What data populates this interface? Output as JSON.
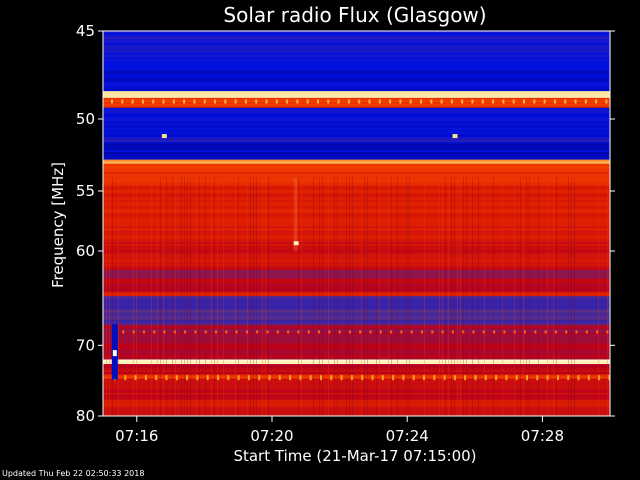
{
  "chart_data": {
    "type": "heatmap",
    "title": "Solar radio Flux (Glasgow)",
    "xlabel": "Start Time (21-Mar-17 07:15:00)",
    "ylabel": "Frequency [MHz]",
    "x_ticks": [
      "07:16",
      "07:20",
      "07:24",
      "07:28"
    ],
    "x_tick_minutes": [
      1,
      5,
      9,
      13
    ],
    "xlim_minutes": [
      0,
      15
    ],
    "y_ticks": [
      45,
      50,
      55,
      60,
      70,
      80
    ],
    "ylim_mhz": [
      45,
      80
    ],
    "y_scale": "reciprocal",
    "colormap": [
      "#000070",
      "#0010e0",
      "#5a2f8a",
      "#b8001c",
      "#e02000",
      "#ff5a00",
      "#ffd070",
      "#ffffe0"
    ],
    "bands": [
      {
        "from": 45,
        "to": 46.8,
        "level": 0.16
      },
      {
        "from": 46.8,
        "to": 48.3,
        "level": 0.12
      },
      {
        "from": 48.3,
        "to": 48.7,
        "level": 0.95
      },
      {
        "from": 48.7,
        "to": 49.3,
        "level": 0.62
      },
      {
        "from": 49.3,
        "to": 51.2,
        "level": 0.14
      },
      {
        "from": 51.2,
        "to": 51.5,
        "level": 0.2
      },
      {
        "from": 51.5,
        "to": 52.7,
        "level": 0.12
      },
      {
        "from": 52.7,
        "to": 53.0,
        "level": 0.8
      },
      {
        "from": 53.0,
        "to": 54.5,
        "level": 0.62
      },
      {
        "from": 54.5,
        "to": 59.0,
        "level": 0.55
      },
      {
        "from": 59.0,
        "to": 61.8,
        "level": 0.5
      },
      {
        "from": 61.8,
        "to": 62.6,
        "level": 0.35
      },
      {
        "from": 62.6,
        "to": 64.0,
        "level": 0.44
      },
      {
        "from": 64.0,
        "to": 64.4,
        "level": 0.58
      },
      {
        "from": 64.4,
        "to": 67.5,
        "level": 0.25
      },
      {
        "from": 67.5,
        "to": 68.8,
        "level": 0.4
      },
      {
        "from": 68.8,
        "to": 71.8,
        "level": 0.42
      },
      {
        "from": 71.8,
        "to": 72.4,
        "level": 0.95
      },
      {
        "from": 72.4,
        "to": 73.8,
        "level": 0.45
      },
      {
        "from": 73.8,
        "to": 74.4,
        "level": 0.62
      },
      {
        "from": 74.4,
        "to": 77.5,
        "level": 0.48
      },
      {
        "from": 77.5,
        "to": 78.5,
        "level": 0.55
      },
      {
        "from": 78.5,
        "to": 80,
        "level": 0.5
      }
    ],
    "spots": [
      {
        "minute": 1.8,
        "mhz": 51.1,
        "level": 0.7
      },
      {
        "minute": 10.4,
        "mhz": 51.1,
        "level": 0.7
      },
      {
        "minute": 5.7,
        "mhz": 59.3,
        "level": 0.75
      }
    ],
    "burst": {
      "minute": 0.35,
      "from_mhz": 67.5,
      "to_mhz": 74.5,
      "level": 0.1
    }
  },
  "footer_text": "Updated Thu Feb 22 02:50:33 2018"
}
